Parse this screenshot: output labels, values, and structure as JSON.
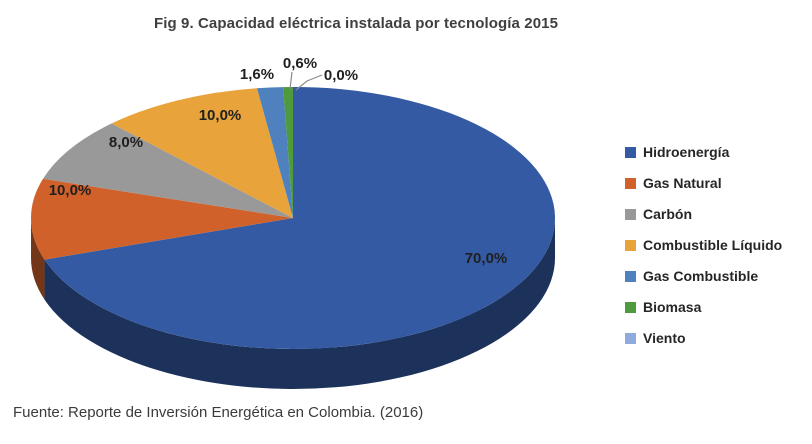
{
  "title": "Fig 9. Capacidad eléctrica instalada por tecnología 2015",
  "source": "Fuente: Reporte de Inversión Energética en Colombia. (2016)",
  "chart_data": {
    "type": "pie",
    "style": "3d",
    "title": "Fig 9. Capacidad eléctrica instalada por tecnología 2015",
    "legend_position": "right",
    "start_angle_deg": 0,
    "direction": "clockwise",
    "value_unit": "percent",
    "slices": [
      {
        "label": "Hidroenergía",
        "value": 70.0,
        "display": "70,0%",
        "color": "#345AA3"
      },
      {
        "label": "Gas Natural",
        "value": 10.0,
        "display": "10,0%",
        "color": "#D0612B"
      },
      {
        "label": "Carbón",
        "value": 8.0,
        "display": "8,0%",
        "color": "#999999"
      },
      {
        "label": "Combustible Líquido",
        "value": 10.0,
        "display": "10,0%",
        "color": "#E8A33B"
      },
      {
        "label": "Gas Combustible",
        "value": 1.6,
        "display": "1,6%",
        "color": "#4E81BD"
      },
      {
        "label": "Biomasa",
        "value": 0.6,
        "display": "0,6%",
        "color": "#4F9A3D"
      },
      {
        "label": "Viento",
        "value": 0.0,
        "display": "0,0%",
        "color": "#8FAADC"
      }
    ],
    "label_color": "#1f1f1f",
    "leader_line_color": "#8c8c8c"
  }
}
